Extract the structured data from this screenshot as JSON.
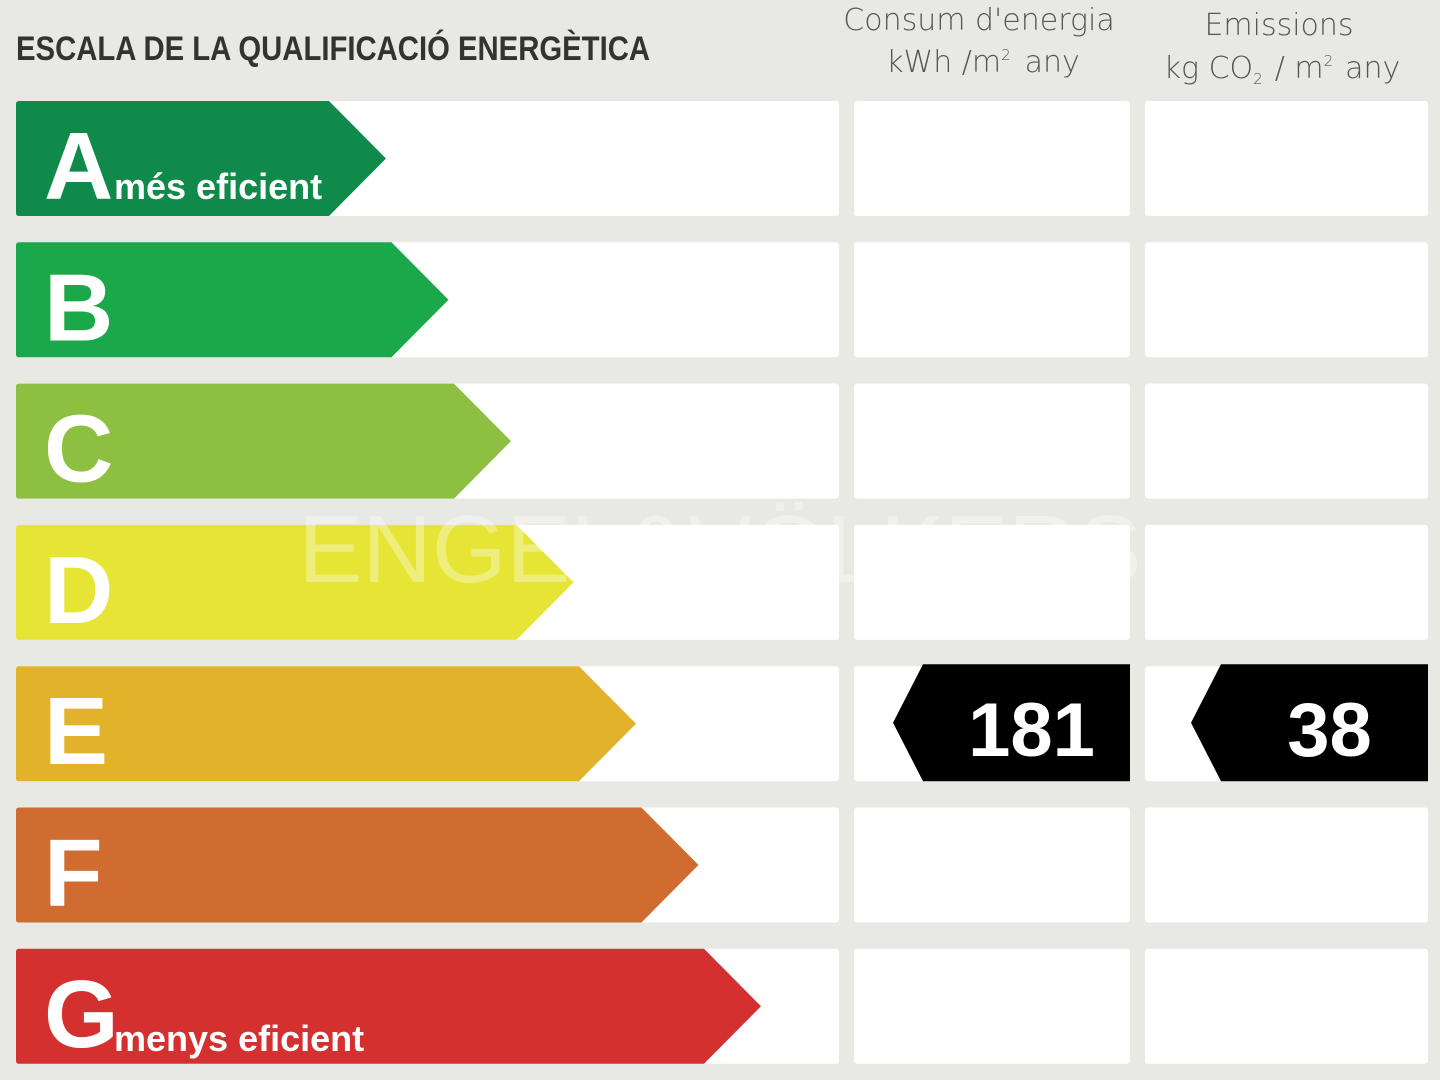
{
  "title": "ESCALA DE LA QUALIFICACIÓ ENERGÈTICA",
  "columns": {
    "energy": {
      "heading": "Consum d'energia",
      "unit": [
        "kWh /m",
        "2",
        "any"
      ]
    },
    "emissions": {
      "heading": "Emissions",
      "unit": [
        "kg CO",
        "2",
        "/ m",
        "2",
        "any"
      ]
    }
  },
  "classes": [
    {
      "letter": "A",
      "label": "més eficient",
      "color": "#108a4a"
    },
    {
      "letter": "B",
      "color": "#1aa84a"
    },
    {
      "letter": "C",
      "color": "#8dc040"
    },
    {
      "letter": "D",
      "color": "#e6e535"
    },
    {
      "letter": "E",
      "color": "#e3b22b"
    },
    {
      "letter": "F",
      "color": "#d06c30"
    },
    {
      "letter": "G",
      "label": "menys eficient",
      "color": "#d3302f"
    }
  ],
  "ratings": {
    "energy": {
      "class": "E",
      "value": 181
    },
    "emissions": {
      "class": "E",
      "value": 38
    }
  },
  "watermark": "ENGEL&VÖLKERS"
}
